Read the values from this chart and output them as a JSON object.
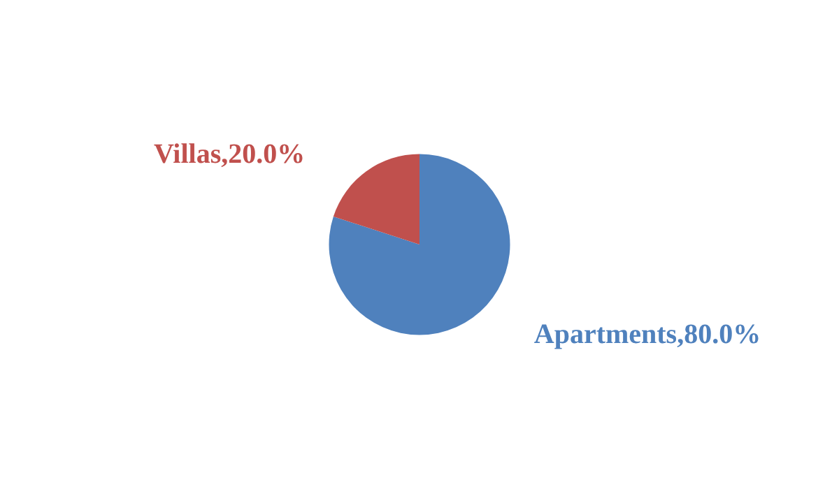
{
  "chart_data": {
    "type": "pie",
    "categories": [
      "Apartments",
      "Villas"
    ],
    "values": [
      80,
      20
    ],
    "colors": [
      "#4f81bd",
      "#c0504d"
    ],
    "value_labels": [
      "80.0%",
      "20.0%"
    ]
  }
}
